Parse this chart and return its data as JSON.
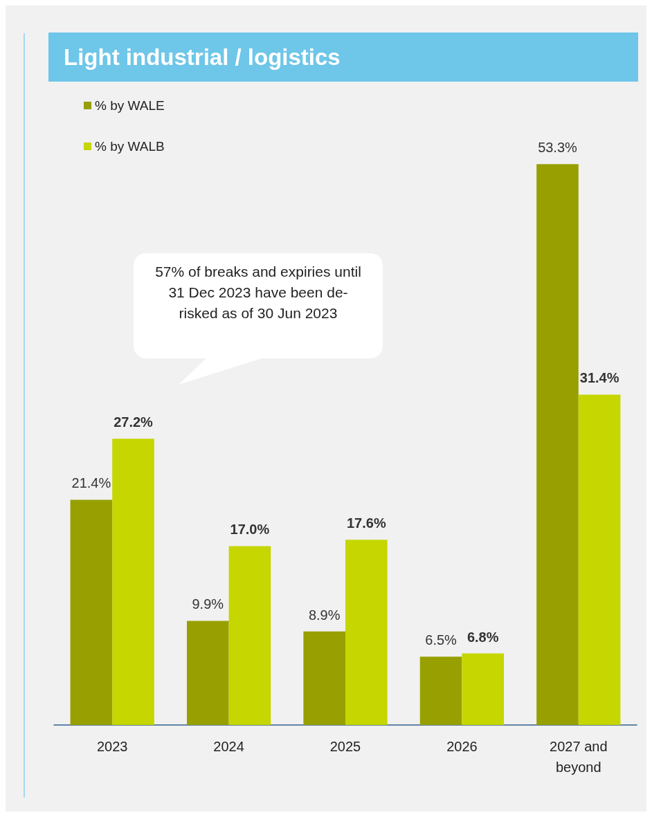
{
  "chart_data": {
    "type": "bar",
    "title": "Light industrial / logistics",
    "categories": [
      "2023",
      "2024",
      "2025",
      "2026",
      "2027 and beyond"
    ],
    "series": [
      {
        "name": "% by WALE",
        "color": "#97a000",
        "values": [
          21.4,
          9.9,
          8.9,
          6.5,
          53.3
        ],
        "value_labels": [
          "21.4%",
          "9.9%",
          "8.9%",
          "6.5%",
          "53.3%"
        ]
      },
      {
        "name": "% by WALB",
        "color": "#c5d600",
        "values": [
          27.2,
          17.0,
          17.6,
          6.8,
          31.4
        ],
        "value_labels": [
          "27.2%",
          "17.0%",
          "17.6%",
          "6.8%",
          "31.4%"
        ]
      }
    ],
    "legend": "top left",
    "grid": false,
    "annotations": [
      "57% of breaks and expiries until 31 Dec 2023 have been de-risked as of 30 Jun 2023"
    ]
  }
}
